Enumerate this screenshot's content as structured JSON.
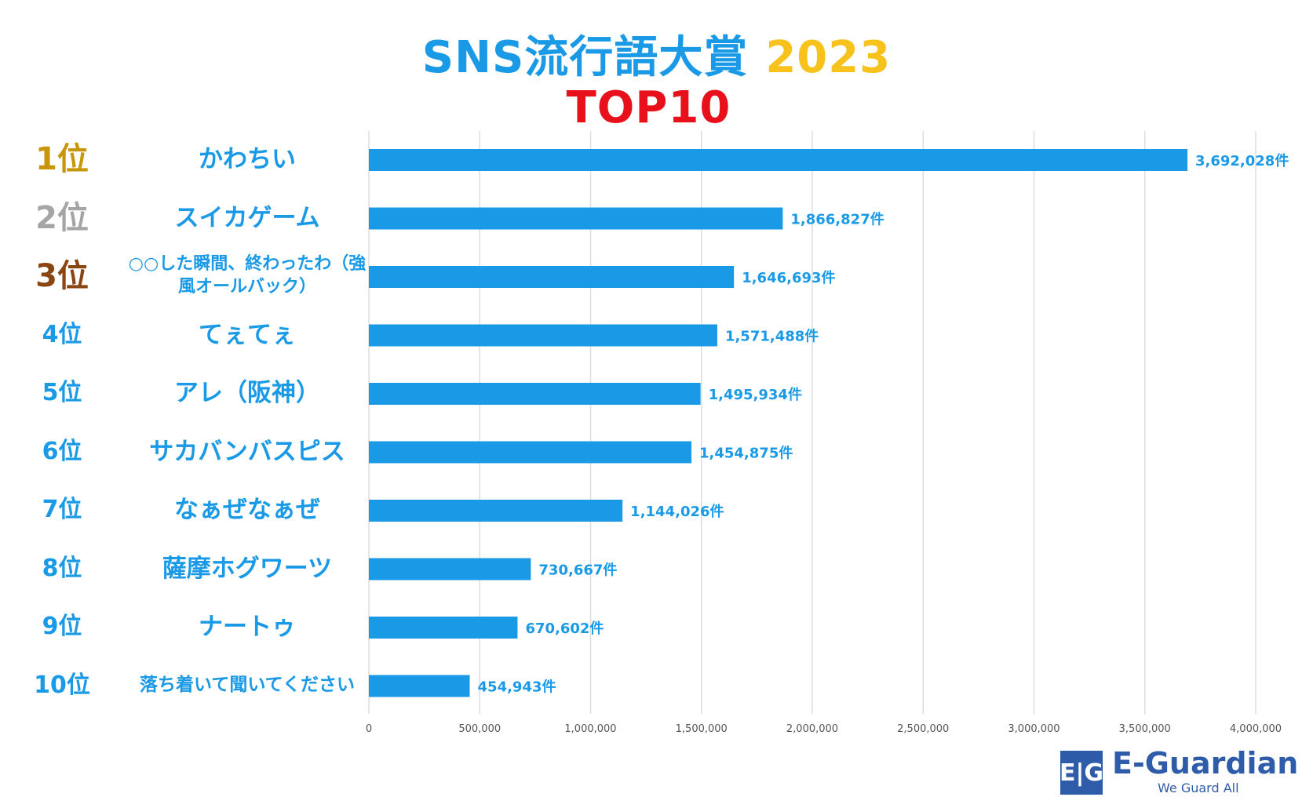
{
  "title": {
    "main": "SNS流行語大賞",
    "year": "2023",
    "sub": "TOP10"
  },
  "chart_data": {
    "type": "bar",
    "orientation": "horizontal",
    "categories": [
      "かわちい",
      "スイカゲーム",
      "○○した瞬間、終わったわ（強風オールバック）",
      "てぇてぇ",
      "アレ（阪神）",
      "サカバンバスピス",
      "なぁぜなぁぜ",
      "薩摩ホグワーツ",
      "ナートゥ",
      "落ち着いて聞いてください"
    ],
    "ranks": [
      "1位",
      "2位",
      "3位",
      "4位",
      "5位",
      "6位",
      "7位",
      "8位",
      "9位",
      "10位"
    ],
    "values": [
      3692028,
      1866827,
      1646693,
      1571488,
      1495934,
      1454875,
      1144026,
      730667,
      670602,
      454943
    ],
    "value_labels": [
      "3,692,028件",
      "1,866,827件",
      "1,646,693件",
      "1,571,488件",
      "1,495,934件",
      "1,454,875件",
      "1,144,026件",
      "730,667件",
      "670,602件",
      "454,943件"
    ],
    "xlim": [
      0,
      4000000
    ],
    "xticks": [
      0,
      500000,
      1000000,
      1500000,
      2000000,
      2500000,
      3000000,
      3500000,
      4000000
    ],
    "xtick_labels": [
      "0",
      "500,000",
      "1,000,000",
      "1,500,000",
      "2,000,000",
      "2,500,000",
      "3,000,000",
      "3,500,000",
      "4,000,000"
    ],
    "xlabel": "",
    "ylabel": "",
    "grid": "vertical",
    "legend": "none",
    "colors": {
      "bar": "#1a9ae6",
      "text": "#1a9ae6",
      "gold": "#c8960a",
      "silver": "#a5a5a5",
      "bronze": "#8a4512",
      "grid": "#dddddd"
    }
  },
  "logo": {
    "mark": "E|G",
    "name_e": "E-",
    "name_rest": "Guardian",
    "tagline": "We Guard All"
  }
}
